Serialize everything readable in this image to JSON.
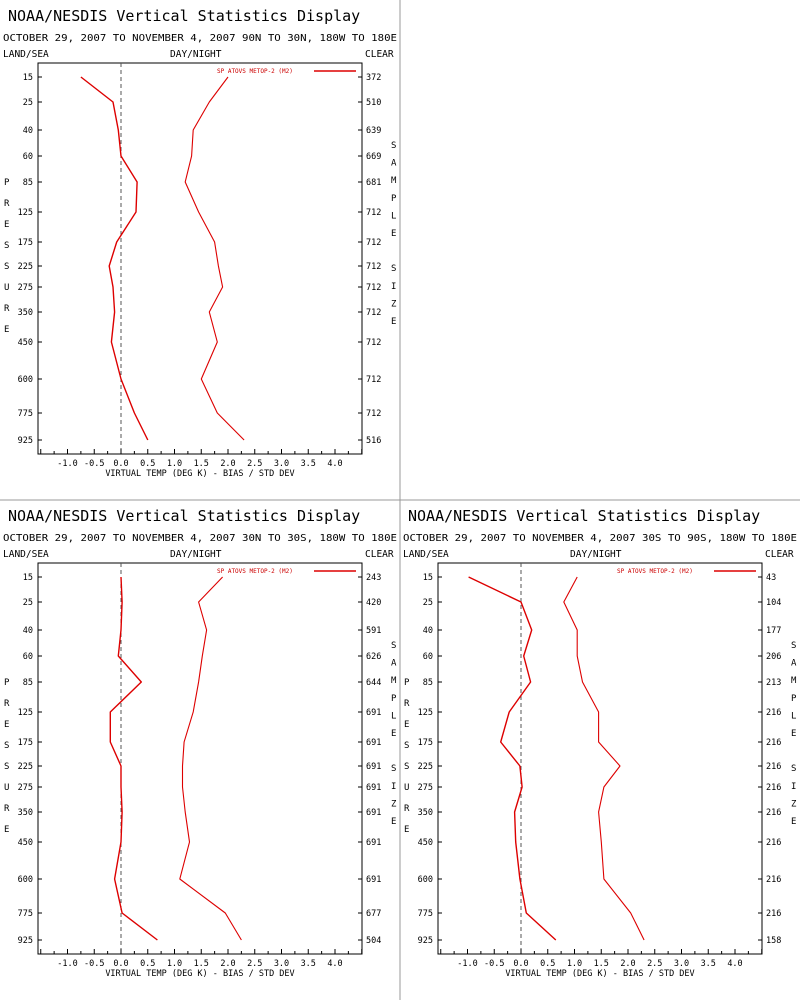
{
  "page_title": "NOAA/NESDIS Vertical Statistics Display",
  "colors": {
    "series": "#dd0000",
    "frame": "#000000",
    "divider": "#999999",
    "zero_line": "#555555"
  },
  "header_labels": {
    "left": "LAND/SEA",
    "center": "DAY/NIGHT",
    "right": "CLEAR"
  },
  "left_axis_label": "PRESSURE",
  "right_axis_label": "SAMPLE SIZE",
  "x_axis_label": "VIRTUAL TEMP (DEG K) - BIAS / STD DEV",
  "legend_text": "SP ATOVS METOP-2 (M2)",
  "pressure_levels": [
    "15",
    "25",
    "40",
    "60",
    "85",
    "125",
    "175",
    "225",
    "275",
    "350",
    "450",
    "600",
    "775",
    "925"
  ],
  "x_ticks": [
    "-1.0",
    "-0.5",
    "0.0",
    "0.5",
    "1.0",
    "1.5",
    "2.0",
    "2.5",
    "3.0",
    "3.5",
    "4.0"
  ],
  "chart_data": [
    {
      "type": "line",
      "title": "NOAA/NESDIS Vertical Statistics Display",
      "subtitle": "OCTOBER 29, 2007 TO NOVEMBER 4, 2007 90N TO 30N, 180W TO 180E",
      "xlabel": "VIRTUAL TEMP (DEG K) - BIAS / STD DEV",
      "ylabel": "PRESSURE",
      "xlim": [
        -1.5,
        4.5
      ],
      "y": [
        15,
        25,
        40,
        60,
        85,
        125,
        175,
        225,
        275,
        350,
        450,
        600,
        775,
        925
      ],
      "sample_size": [
        "372",
        "510",
        "639",
        "669",
        "681",
        "712",
        "712",
        "712",
        "712",
        "712",
        "712",
        "712",
        "712",
        "516"
      ],
      "series": [
        {
          "name": "SP ATOVS METOP-2 (M2)",
          "kind": "bias",
          "values": [
            -0.75,
            -0.15,
            -0.05,
            0.0,
            0.3,
            0.28,
            -0.08,
            -0.22,
            -0.15,
            -0.12,
            -0.18,
            0.0,
            0.25,
            0.5
          ]
        },
        {
          "kind": "std_dev",
          "values": [
            2.0,
            1.65,
            1.35,
            1.32,
            1.2,
            1.45,
            1.75,
            1.82,
            1.9,
            1.65,
            1.8,
            1.5,
            1.8,
            2.3
          ]
        }
      ]
    },
    {
      "type": "line",
      "title": "NOAA/NESDIS Vertical Statistics Display",
      "subtitle": "OCTOBER 29, 2007 TO NOVEMBER 4, 2007 30N TO 30S, 180W TO 180E",
      "xlabel": "VIRTUAL TEMP (DEG K) - BIAS / STD DEV",
      "ylabel": "PRESSURE",
      "xlim": [
        -1.5,
        4.5
      ],
      "y": [
        15,
        25,
        40,
        60,
        85,
        125,
        175,
        225,
        275,
        350,
        450,
        600,
        775,
        925
      ],
      "sample_size": [
        "243",
        "420",
        "591",
        "626",
        "644",
        "691",
        "691",
        "691",
        "691",
        "691",
        "691",
        "691",
        "677",
        "504"
      ],
      "series": [
        {
          "name": "SP ATOVS METOP-2 (M2)",
          "kind": "bias",
          "values": [
            0.0,
            0.02,
            0.0,
            -0.05,
            0.38,
            -0.2,
            -0.2,
            0.0,
            0.0,
            0.02,
            0.0,
            -0.12,
            0.02,
            0.68
          ]
        },
        {
          "kind": "std_dev",
          "values": [
            1.9,
            1.45,
            1.6,
            1.52,
            1.45,
            1.35,
            1.18,
            1.15,
            1.15,
            1.2,
            1.28,
            1.1,
            1.95,
            2.25
          ]
        }
      ]
    },
    {
      "type": "line",
      "title": "NOAA/NESDIS Vertical Statistics Display",
      "subtitle": "OCTOBER 29, 2007 TO NOVEMBER 4, 2007 30S TO 90S, 180W TO 180E",
      "xlabel": "VIRTUAL TEMP (DEG K) - BIAS / STD DEV",
      "ylabel": "PRESSURE",
      "xlim": [
        -1.5,
        4.5
      ],
      "y": [
        15,
        25,
        40,
        60,
        85,
        125,
        175,
        225,
        275,
        350,
        450,
        600,
        775,
        925
      ],
      "sample_size": [
        "43",
        "104",
        "177",
        "206",
        "213",
        "216",
        "216",
        "216",
        "216",
        "216",
        "216",
        "216",
        "216",
        "158"
      ],
      "series": [
        {
          "name": "SP ATOVS METOP-2 (M2)",
          "kind": "bias",
          "values": [
            -0.98,
            0.0,
            0.2,
            0.05,
            0.18,
            -0.22,
            -0.38,
            -0.02,
            0.02,
            -0.12,
            -0.1,
            -0.02,
            0.1,
            0.65
          ]
        },
        {
          "kind": "std_dev",
          "values": [
            1.05,
            0.8,
            1.05,
            1.05,
            1.15,
            1.45,
            1.45,
            1.85,
            1.55,
            1.45,
            1.5,
            1.55,
            2.05,
            2.3
          ]
        }
      ]
    }
  ]
}
